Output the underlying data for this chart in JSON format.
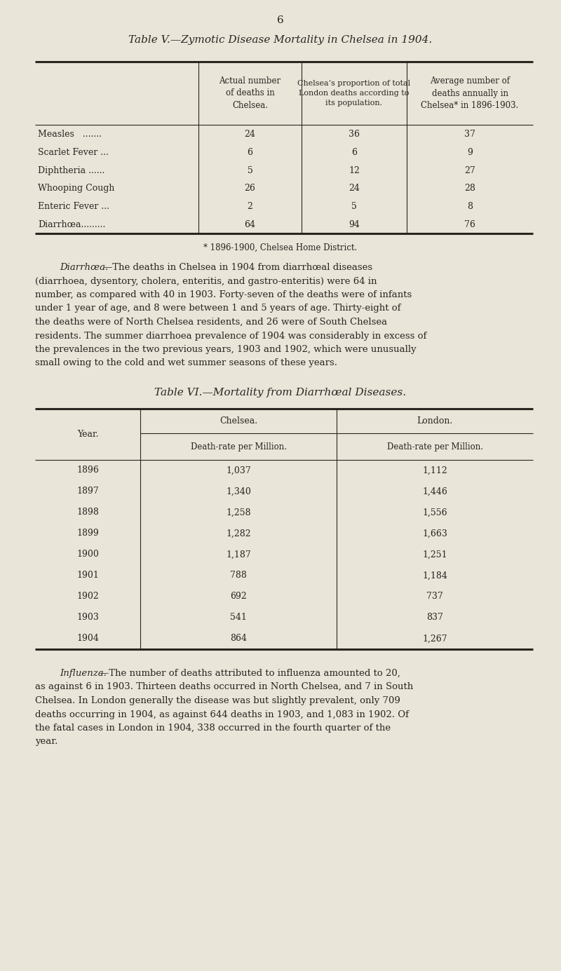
{
  "page_number": "6",
  "bg_color": "#e9e5d9",
  "text_color": "#2a2520",
  "table5_title_prefix": "Table V.",
  "table5_title_italic": "—Zymotic Disease Mortality in Chelsea in 1904.",
  "table5_col0_hdr": "Actual number\nof deaths in\nChelsea.",
  "table5_col1_hdr": "Chelsea’s proportion of total\nLondon deaths according to\nits population.",
  "table5_col2_hdr": "Average number of\ndeaths annually in\nChelsea* in 1896-1903.",
  "table5_rows": [
    [
      "Measles   .......",
      "24",
      "36",
      "37"
    ],
    [
      "Scarlet Fever ...",
      "6",
      "6",
      "9"
    ],
    [
      "Diphtheria ......",
      "5",
      "12",
      "27"
    ],
    [
      "Whooping Cough",
      "26",
      "24",
      "28"
    ],
    [
      "Enteric Fever ...",
      "2",
      "5",
      "8"
    ],
    [
      "Diarrhœa.........",
      "64",
      "94",
      "76"
    ]
  ],
  "table5_footnote": "* 1896-1900, Chelsea Home District.",
  "diarrhoea_italic": "Diarrhœa.",
  "diarrhoea_dash": "—",
  "diarrhoea_body": "The deaths in Chelsea in 1904  from diarrhœal diseases (diarrhoea, dysentory, cholera, enteritis, and gastro-enteritis) were 64 in number, as compared with 40 in 1903.   Forty-seven of the deaths were of infants under 1 year of age, and 8 were between 1 and 5  years of age.   Thirty-eight of the deaths were of  North Chelsea residents, and 26 were of South Chelsea residents.   The summer diarrhoea prevalence of 1904 was considerably in excess of the prevalences in the two previous years, 1903 and  1902, which  were  unusually  small  owing  to  the cold and wet summer seasons of these years.",
  "table6_title_prefix": "Table VI.",
  "table6_title_italic": "—Mortality from Diarrhœal Diseases.",
  "table6_col0_hdr": "Year.",
  "table6_col1_grp": "Chelsea.",
  "table6_col2_grp": "London.",
  "table6_col1_sub": "Death-rate per Million.",
  "table6_col2_sub": "Death-rate per Million.",
  "table6_rows": [
    [
      "1896",
      "1,037",
      "1,112"
    ],
    [
      "1897",
      "1,340",
      "1,446"
    ],
    [
      "1898",
      "1,258",
      "1,556"
    ],
    [
      "1899",
      "1,282",
      "1,663"
    ],
    [
      "1900",
      "1,187",
      "1,251"
    ],
    [
      "1901",
      "788",
      "1,184"
    ],
    [
      "1902",
      "692",
      "737"
    ],
    [
      "1903",
      "541",
      "837"
    ],
    [
      "1904",
      "864",
      "1,267"
    ]
  ],
  "influenza_italic": "Influenza.",
  "influenza_dash": "—",
  "influenza_body": "The number of deaths attributed to influenza amounted to 20, as against 6 in 1903.   Thirteen deaths occurred in North Chelsea, and 7 in South Chelsea.   In London generally the disease was but slightly prevalent, only 709  deaths  occurring  in 1904, as against 644 deaths in 1903, and 1,083 in 1902.   Of the fatal  cases in London in 1904, 338 occurred in the fourth quarter of the year."
}
